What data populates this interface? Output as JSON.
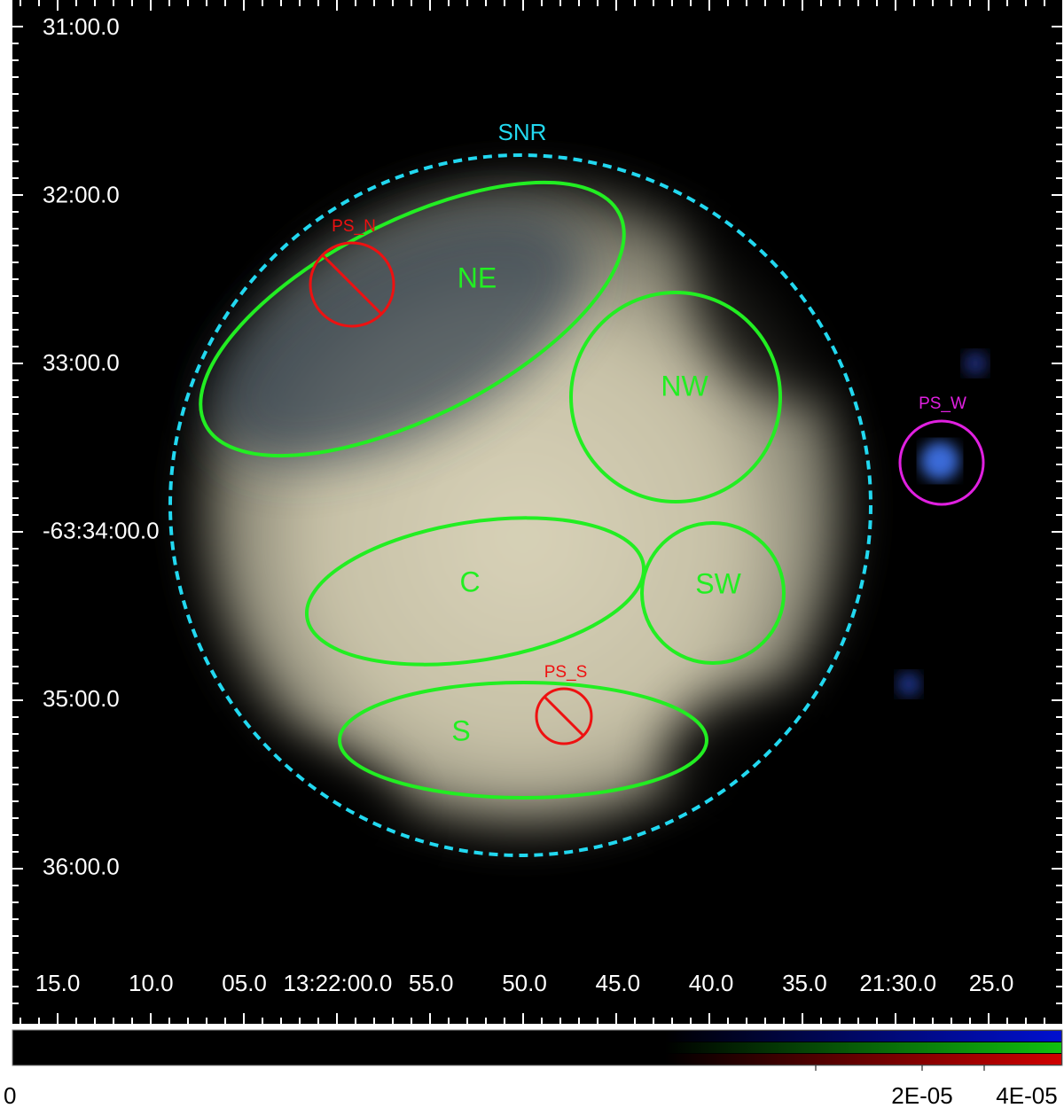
{
  "image": {
    "y_axis_labels": [
      "31:00.0",
      "32:00.0",
      "33:00.0",
      "-63:34:00.0",
      "35:00.0",
      "36:00.0"
    ],
    "x_axis_labels": [
      "15.0",
      "10.0",
      "05.0",
      "13:22:00.0",
      "55.0",
      "50.0",
      "45.0",
      "40.0",
      "35.0",
      "21:30.0",
      "25.0"
    ],
    "regions": [
      {
        "label": "SNR"
      },
      {
        "label": "NE"
      },
      {
        "label": "NW"
      },
      {
        "label": "C"
      },
      {
        "label": "SW"
      },
      {
        "label": "S"
      },
      {
        "label": "PS_N"
      },
      {
        "label": "PS_S"
      },
      {
        "label": "PS_W"
      }
    ],
    "colorbar": {
      "labels": [
        "0",
        "2E-05",
        "4E-05"
      ]
    }
  }
}
